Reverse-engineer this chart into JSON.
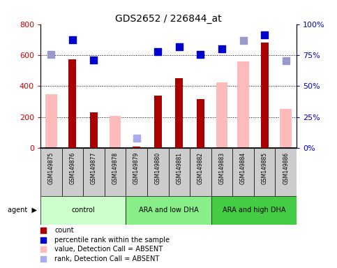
{
  "title": "GDS2652 / 226844_at",
  "samples": [
    "GSM149875",
    "GSM149876",
    "GSM149877",
    "GSM149878",
    "GSM149879",
    "GSM149880",
    "GSM149881",
    "GSM149882",
    "GSM149883",
    "GSM149884",
    "GSM149885",
    "GSM149886"
  ],
  "count_values": [
    null,
    575,
    230,
    null,
    10,
    340,
    450,
    315,
    null,
    null,
    680,
    null
  ],
  "count_color": "#aa0000",
  "value_absent_values": [
    350,
    null,
    null,
    210,
    null,
    null,
    null,
    null,
    425,
    560,
    null,
    255
  ],
  "value_absent_color": "#ffbbbb",
  "rank_absent_values": [
    null,
    null,
    null,
    null,
    65,
    null,
    null,
    null,
    null,
    null,
    null,
    null
  ],
  "rank_absent_color": "#aaaaee",
  "percentile_present": [
    null,
    87.5,
    71.0,
    null,
    null,
    78.0,
    82.0,
    75.5,
    80.0,
    null,
    91.5,
    null
  ],
  "percentile_absent": [
    75.5,
    null,
    null,
    null,
    null,
    null,
    null,
    null,
    null,
    87.0,
    null,
    70.5
  ],
  "percentile_present_color": "#0000cc",
  "percentile_absent_color": "#9999cc",
  "ylim_left": [
    0,
    800
  ],
  "ylim_right": [
    0,
    100
  ],
  "ytick_labels_left": [
    "0",
    "200",
    "400",
    "600",
    "800"
  ],
  "ytick_vals_left": [
    0,
    200,
    400,
    600,
    800
  ],
  "ytick_vals_right": [
    0,
    25,
    50,
    75,
    100
  ],
  "ytick_labels_right": [
    "0%",
    "25%",
    "50%",
    "75%",
    "100%"
  ],
  "grid_values": [
    200,
    400,
    600
  ],
  "group_labels": [
    "control",
    "ARA and low DHA",
    "ARA and high DHA"
  ],
  "group_colors": [
    "#ccffcc",
    "#88ee88",
    "#44cc44"
  ],
  "group_boundaries": [
    0,
    4,
    8,
    12
  ],
  "legend_items": [
    {
      "label": "count",
      "color": "#aa0000"
    },
    {
      "label": "percentile rank within the sample",
      "color": "#0000cc"
    },
    {
      "label": "value, Detection Call = ABSENT",
      "color": "#ffbbbb"
    },
    {
      "label": "rank, Detection Call = ABSENT",
      "color": "#aaaaee"
    }
  ],
  "left_label_color": "#cc0000",
  "right_label_color": "#0000cc",
  "marker_size": 55
}
